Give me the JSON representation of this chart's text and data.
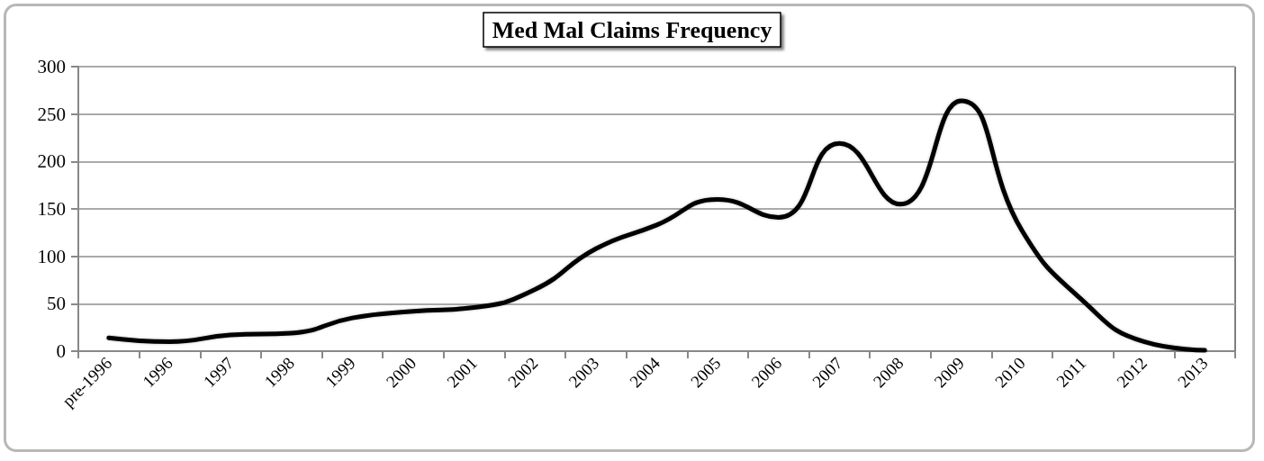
{
  "chart_data": {
    "type": "line",
    "title": "Med Mal Claims Frequency",
    "categories": [
      "pre-1996",
      "1996",
      "1997",
      "1998",
      "1999",
      "2000",
      "2001",
      "2002",
      "2003",
      "2004",
      "2005",
      "2006",
      "2007",
      "2008",
      "2009",
      "2010",
      "2011",
      "2012",
      "2013"
    ],
    "series": [
      {
        "color": "#000000",
        "values": [
          14,
          10,
          17,
          19,
          35,
          42,
          46,
          65,
          108,
          133,
          160,
          141,
          219,
          155,
          264,
          127,
          53,
          10,
          1
        ]
      }
    ],
    "ylim": [
      0,
      300
    ],
    "yticks": [
      0,
      50,
      100,
      150,
      200,
      250,
      300
    ],
    "grid": "y",
    "marker": "none",
    "line_style": "solid"
  }
}
